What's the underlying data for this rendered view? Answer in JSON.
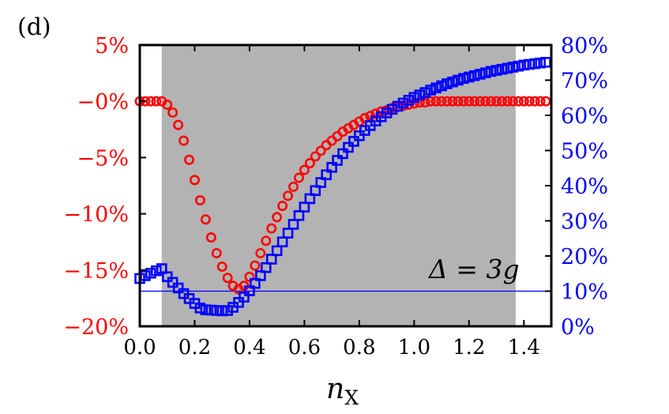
{
  "chart_data": {
    "type": "scatter",
    "panel_label": "(d)",
    "annotation": "Δ = 3g",
    "xlabel": "n",
    "xlabel_subscript": "X",
    "xlim": [
      0.0,
      1.5
    ],
    "y_left_lim": [
      -20,
      5
    ],
    "y_right_lim": [
      0,
      80
    ],
    "x_ticks": [
      "0.0",
      "0.2",
      "0.4",
      "0.6",
      "0.8",
      "1.0",
      "1.2",
      "1.4"
    ],
    "x_tick_values": [
      0.0,
      0.2,
      0.4,
      0.6,
      0.8,
      1.0,
      1.2,
      1.4
    ],
    "y_left_ticks": [
      "5%",
      "−0%",
      "−5%",
      "−10%",
      "−15%",
      "−20%"
    ],
    "y_left_tick_values": [
      5,
      0,
      -5,
      -10,
      -15,
      -20
    ],
    "y_right_ticks": [
      "80%",
      "70%",
      "60%",
      "50%",
      "40%",
      "30%",
      "20%",
      "10%",
      "0%"
    ],
    "y_right_tick_values": [
      80,
      70,
      60,
      50,
      40,
      30,
      20,
      10,
      0
    ],
    "shaded_region": {
      "x_start": 0.08,
      "x_end": 1.37
    },
    "reference_line": {
      "axis": "right",
      "y": 10
    },
    "colors": {
      "left_axis": "#ff0000",
      "right_axis": "#0000ff",
      "shade": "#b3b3b3"
    },
    "series": [
      {
        "axis": "left",
        "marker": "circle",
        "color": "#ff0000",
        "x": [
          0.0,
          0.02,
          0.04,
          0.06,
          0.08,
          0.1,
          0.12,
          0.14,
          0.16,
          0.18,
          0.2,
          0.22,
          0.24,
          0.26,
          0.28,
          0.3,
          0.32,
          0.34,
          0.36,
          0.38,
          0.4,
          0.42,
          0.44,
          0.46,
          0.48,
          0.5,
          0.52,
          0.54,
          0.56,
          0.58,
          0.6,
          0.62,
          0.64,
          0.66,
          0.68,
          0.7,
          0.72,
          0.74,
          0.76,
          0.78,
          0.8,
          0.82,
          0.84,
          0.86,
          0.88,
          0.9,
          0.92,
          0.94,
          0.96,
          0.98,
          1.0,
          1.02,
          1.04,
          1.06,
          1.08,
          1.1,
          1.12,
          1.14,
          1.16,
          1.18,
          1.2,
          1.22,
          1.24,
          1.26,
          1.28,
          1.3,
          1.32,
          1.34,
          1.36,
          1.38,
          1.4,
          1.42,
          1.44,
          1.46,
          1.48
        ],
        "y": [
          0.0,
          0.0,
          0.0,
          0.0,
          0.0,
          -0.3,
          -1.0,
          -2.1,
          -3.5,
          -5.2,
          -7.0,
          -8.8,
          -10.5,
          -12.1,
          -13.5,
          -14.7,
          -15.7,
          -16.4,
          -16.7,
          -16.4,
          -15.6,
          -14.6,
          -13.5,
          -12.4,
          -11.3,
          -10.3,
          -9.3,
          -8.4,
          -7.6,
          -6.8,
          -6.1,
          -5.5,
          -4.9,
          -4.4,
          -3.9,
          -3.5,
          -3.1,
          -2.7,
          -2.4,
          -2.1,
          -1.8,
          -1.5,
          -1.3,
          -1.1,
          -0.9,
          -0.8,
          -0.6,
          -0.5,
          -0.4,
          -0.3,
          -0.2,
          -0.1,
          -0.1,
          0.0,
          0.0,
          0.0,
          0.0,
          0.0,
          0.0,
          0.0,
          0.0,
          0.0,
          0.0,
          0.0,
          0.0,
          0.0,
          0.0,
          0.0,
          0.0,
          0.0,
          0.0,
          0.0,
          0.0,
          0.0,
          0.0
        ]
      },
      {
        "axis": "right",
        "marker": "square",
        "color": "#0000ff",
        "x": [
          0.0,
          0.02,
          0.04,
          0.06,
          0.08,
          0.1,
          0.12,
          0.14,
          0.16,
          0.18,
          0.2,
          0.22,
          0.24,
          0.26,
          0.28,
          0.3,
          0.32,
          0.34,
          0.36,
          0.38,
          0.4,
          0.42,
          0.44,
          0.46,
          0.48,
          0.5,
          0.52,
          0.54,
          0.56,
          0.58,
          0.6,
          0.62,
          0.64,
          0.66,
          0.68,
          0.7,
          0.72,
          0.74,
          0.76,
          0.78,
          0.8,
          0.82,
          0.84,
          0.86,
          0.88,
          0.9,
          0.92,
          0.94,
          0.96,
          0.98,
          1.0,
          1.02,
          1.04,
          1.06,
          1.08,
          1.1,
          1.12,
          1.14,
          1.16,
          1.18,
          1.2,
          1.22,
          1.24,
          1.26,
          1.28,
          1.3,
          1.32,
          1.34,
          1.36,
          1.38,
          1.4,
          1.42,
          1.44,
          1.46,
          1.48
        ],
        "y": [
          13.6,
          14.4,
          15.1,
          15.8,
          16.4,
          14.1,
          12.5,
          10.9,
          9.3,
          7.9,
          6.5,
          5.2,
          4.7,
          4.6,
          4.5,
          4.4,
          4.5,
          5.4,
          6.8,
          8.3,
          10.1,
          12.2,
          14.4,
          16.7,
          19.1,
          21.5,
          24.0,
          26.5,
          29.0,
          31.5,
          33.9,
          36.3,
          38.6,
          40.9,
          43.1,
          45.2,
          47.2,
          49.1,
          50.9,
          52.6,
          54.2,
          55.7,
          57.1,
          58.4,
          59.6,
          60.7,
          61.7,
          62.6,
          63.5,
          64.3,
          65.1,
          65.8,
          66.5,
          67.2,
          67.8,
          68.4,
          69.0,
          69.5,
          70.0,
          70.5,
          70.9,
          71.3,
          71.7,
          72.1,
          72.5,
          72.8,
          73.1,
          73.4,
          73.7,
          74.0,
          74.3,
          74.5,
          74.7,
          74.9,
          75.1
        ]
      }
    ]
  }
}
